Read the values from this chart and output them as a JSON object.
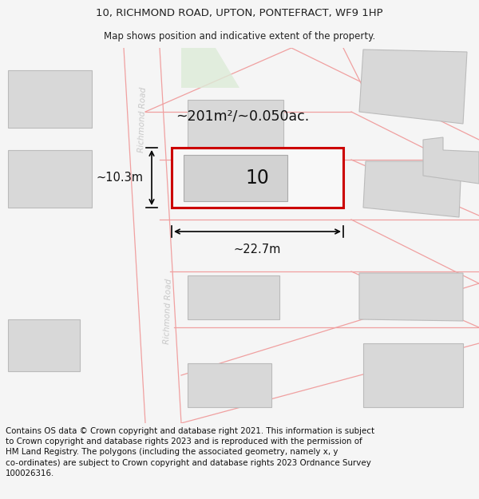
{
  "title_line1": "10, RICHMOND ROAD, UPTON, PONTEFRACT, WF9 1HP",
  "title_line2": "Map shows position and indicative extent of the property.",
  "property_label": "10",
  "area_label": "~201m²/~0.050ac.",
  "width_label": "~22.7m",
  "height_label": "~10.3m",
  "bg_color": "#f5f5f5",
  "map_bg": "#ffffff",
  "building_color": "#d8d8d8",
  "building_edge": "#bbbbbb",
  "highlight_color": "#cc0000",
  "road_line_color": "#f0a0a0",
  "road_fill_color": "#faf5f5",
  "road_text_color": "#c8c8c8",
  "annotation_color": "#111111",
  "title_color": "#222222",
  "footer_color": "#111111",
  "green_color": "#dcebd8",
  "footer_lines": [
    "Contains OS data © Crown copyright and database right 2021. This information is subject",
    "to Crown copyright and database rights 2023 and is reproduced with the permission of",
    "HM Land Registry. The polygons (including the associated geometry, namely x, y",
    "co-ordinates) are subject to Crown copyright and database rights 2023 Ordnance Survey",
    "100026316."
  ]
}
